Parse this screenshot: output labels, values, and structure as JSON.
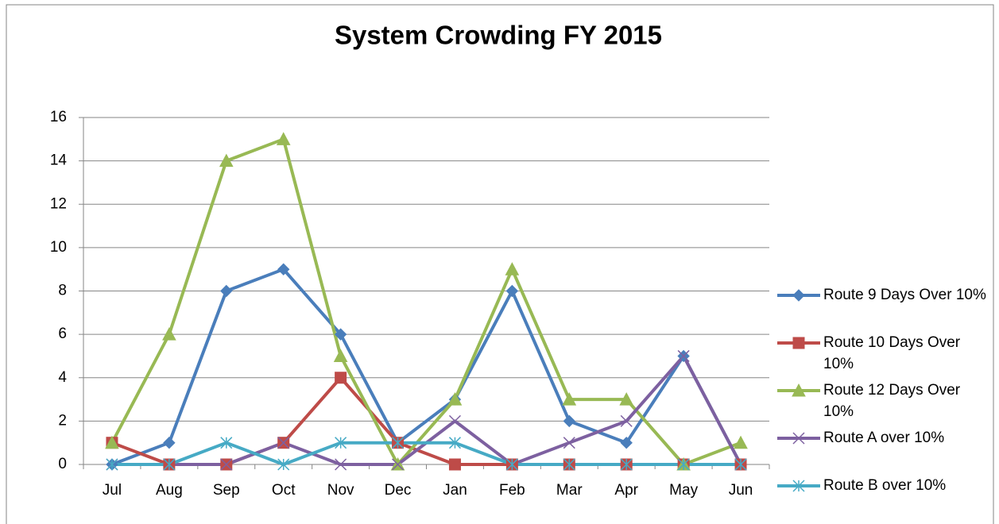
{
  "chart_data": {
    "type": "line",
    "title": "System Crowding FY 2015",
    "categories": [
      "Jul",
      "Aug",
      "Sep",
      "Oct",
      "Nov",
      "Dec",
      "Jan",
      "Feb",
      "Mar",
      "Apr",
      "May",
      "Jun"
    ],
    "series": [
      {
        "name": "Route 9 Days Over 10%",
        "color": "#4a7ebb",
        "marker": "diamond",
        "values": [
          0,
          1,
          8,
          9,
          6,
          1,
          3,
          8,
          2,
          1,
          5,
          0
        ]
      },
      {
        "name": "Route 10 Days Over 10%",
        "color": "#be4b48",
        "marker": "square",
        "values": [
          1,
          0,
          0,
          1,
          4,
          1,
          0,
          0,
          0,
          0,
          0,
          0
        ]
      },
      {
        "name": "Route 12 Days Over 10%",
        "color": "#98b954",
        "marker": "triangle",
        "values": [
          1,
          6,
          14,
          15,
          5,
          0,
          3,
          9,
          3,
          3,
          0,
          1
        ]
      },
      {
        "name": "Route A over 10%",
        "color": "#7d60a0",
        "marker": "x",
        "values": [
          0,
          0,
          0,
          1,
          0,
          0,
          2,
          0,
          1,
          2,
          5,
          0
        ]
      },
      {
        "name": "Route B over 10%",
        "color": "#46aac5",
        "marker": "star",
        "values": [
          0,
          0,
          1,
          0,
          1,
          1,
          1,
          0,
          0,
          0,
          0,
          0
        ]
      }
    ],
    "ylim": [
      0,
      16
    ],
    "yticks": [
      0,
      2,
      4,
      6,
      8,
      10,
      12,
      14,
      16
    ],
    "grid": true,
    "legend": "right"
  }
}
